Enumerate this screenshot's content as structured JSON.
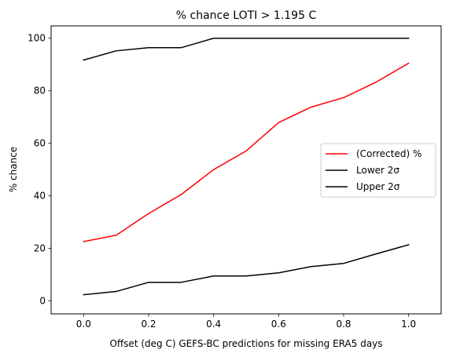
{
  "chart_data": {
    "type": "line",
    "title": "% chance LOTI > 1.195 C",
    "xlabel": "Offset (deg C) GEFS-BC predictions for missing ERA5 days",
    "ylabel": "% chance",
    "xlim": [
      -0.1,
      1.1
    ],
    "ylim": [
      -4.9,
      104.7
    ],
    "x": [
      0.0,
      0.1,
      0.2,
      0.3,
      0.4,
      0.5,
      0.6,
      0.7,
      0.8,
      0.9,
      1.0
    ],
    "x_ticks": [
      0.0,
      0.2,
      0.4,
      0.6,
      0.8,
      1.0
    ],
    "x_tick_labels": [
      "0.0",
      "0.2",
      "0.4",
      "0.6",
      "0.8",
      "1.0"
    ],
    "y_ticks": [
      0,
      20,
      40,
      60,
      80,
      100
    ],
    "y_tick_labels": [
      "0",
      "20",
      "40",
      "60",
      "80",
      "100"
    ],
    "grid": false,
    "legend": "center-right",
    "series": [
      {
        "name": "(Corrected) %",
        "color": "#ff0000",
        "values": [
          22.6,
          25.0,
          33.3,
          40.5,
          50.0,
          57.1,
          67.9,
          73.8,
          77.4,
          83.3,
          90.5
        ]
      },
      {
        "name": "Lower 2σ",
        "color": "#000000",
        "values": [
          2.4,
          3.6,
          7.1,
          7.1,
          9.5,
          9.5,
          10.7,
          13.1,
          14.3,
          17.9,
          21.4
        ]
      },
      {
        "name": "Upper 2σ",
        "color": "#000000",
        "values": [
          91.7,
          95.2,
          96.4,
          96.4,
          100.0,
          100.0,
          100.0,
          100.0,
          100.0,
          100.0,
          100.0
        ]
      }
    ]
  }
}
